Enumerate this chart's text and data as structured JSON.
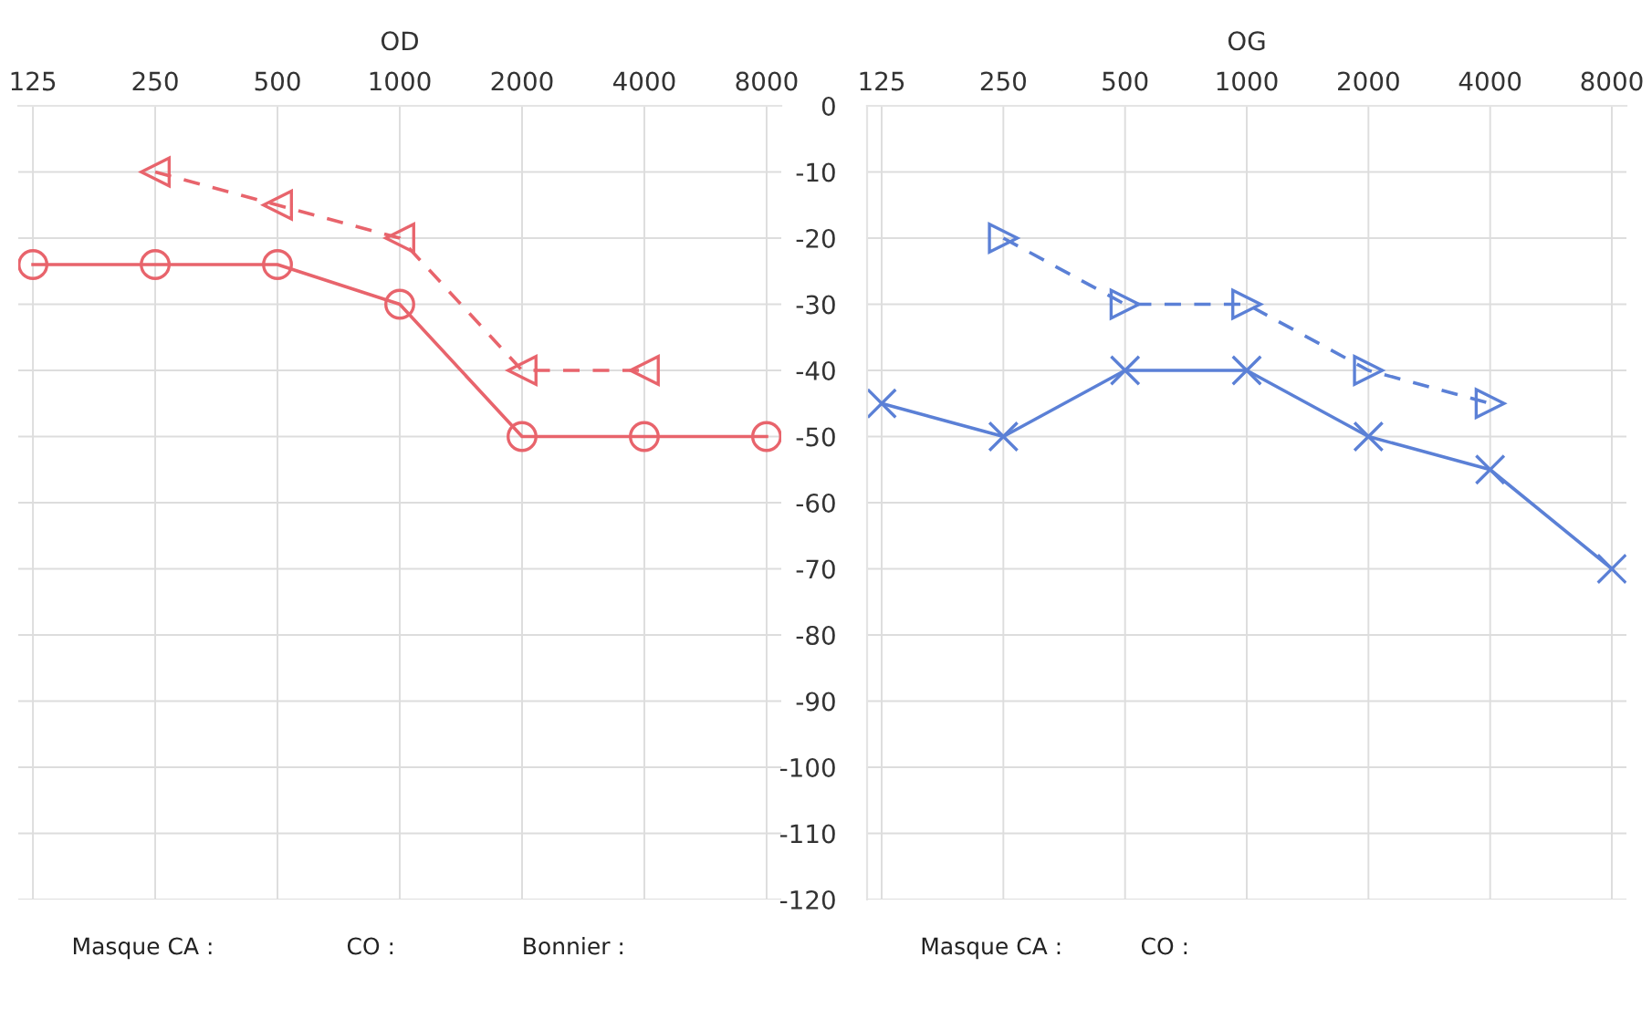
{
  "chart_data": [
    {
      "type": "line",
      "title": "OD",
      "categories": [
        "125",
        "250",
        "500",
        "1000",
        "2000",
        "4000",
        "8000"
      ],
      "series": [
        {
          "color": "#e8646c",
          "marker": "circle",
          "line_style": "solid",
          "values": [
            -24,
            -24,
            -24,
            -30,
            -50,
            -50,
            -50
          ]
        },
        {
          "color": "#e8646c",
          "marker": "triangle",
          "line_style": "dashed",
          "values": [
            null,
            -10,
            -15,
            -20,
            -40,
            -40,
            null
          ]
        }
      ],
      "ylim": [
        -120,
        0
      ],
      "yticks": [
        0,
        -10,
        -20,
        -30,
        -40,
        -50,
        -60,
        -70,
        -80,
        -90,
        -100,
        -110,
        -120
      ],
      "grid": true,
      "tick_labels": "x",
      "annotations": [
        "Masque CA :",
        "CO :",
        "Bonnier :"
      ]
    },
    {
      "type": "line",
      "title": "OG",
      "categories": [
        "125",
        "250",
        "500",
        "1000",
        "2000",
        "4000",
        "8000"
      ],
      "series": [
        {
          "color": "#5b80d6",
          "marker": "cross",
          "line_style": "solid",
          "values": [
            -45,
            -50,
            -40,
            -40,
            -50,
            -55,
            -70
          ]
        },
        {
          "color": "#5b80d6",
          "marker": "triangle",
          "line_style": "dashed",
          "values": [
            null,
            -20,
            -30,
            -30,
            -40,
            -45,
            null
          ]
        }
      ],
      "ylim": [
        -120,
        0
      ],
      "yticks": [
        0,
        -10,
        -20,
        -30,
        -40,
        -50,
        -60,
        -70,
        -80,
        -90,
        -100,
        -110,
        -120
      ],
      "grid": true,
      "annotations": [
        "Masque CA :",
        "CO :"
      ]
    }
  ]
}
